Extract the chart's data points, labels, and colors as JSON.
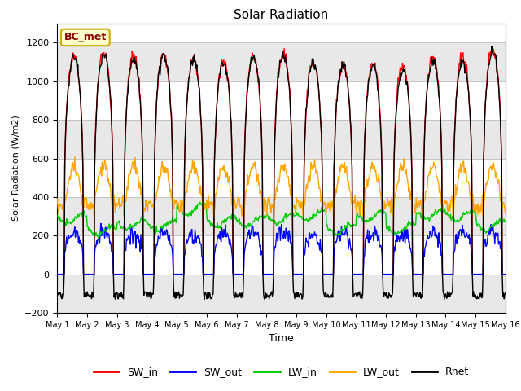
{
  "title": "Solar Radiation",
  "ylabel": "Solar Radiation (W/m2)",
  "xlabel": "Time",
  "ylim": [
    -200,
    1300
  ],
  "yticks": [
    -200,
    0,
    200,
    400,
    600,
    800,
    1000,
    1200
  ],
  "num_days": 15,
  "station_label": "BC_met",
  "colors": {
    "SW_in": "#ff0000",
    "SW_out": "#0000ff",
    "LW_in": "#00cc00",
    "LW_out": "#ffa500",
    "Rnet": "#000000"
  },
  "band_colors": [
    "#e8e8e8",
    "#ffffff"
  ],
  "seed": 42
}
